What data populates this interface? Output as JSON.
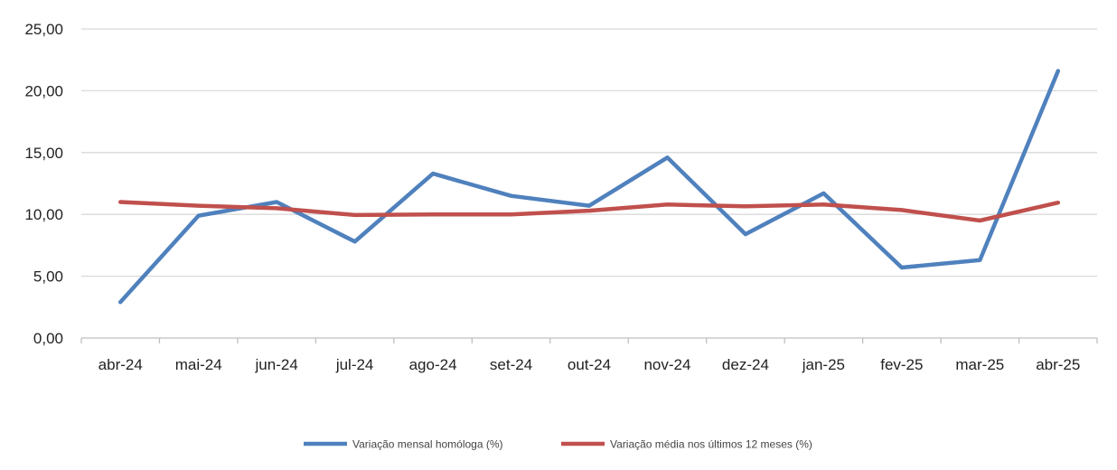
{
  "chart_data": {
    "type": "line",
    "categories": [
      "abr-24",
      "mai-24",
      "jun-24",
      "jul-24",
      "ago-24",
      "set-24",
      "out-24",
      "nov-24",
      "dez-24",
      "jan-25",
      "fev-25",
      "mar-25",
      "abr-25"
    ],
    "series": [
      {
        "name": "Variação mensal homóloga (%)",
        "color": "#4F81BD",
        "values": [
          2.9,
          9.9,
          11.0,
          7.8,
          13.3,
          11.5,
          10.7,
          14.6,
          8.4,
          11.7,
          5.7,
          6.3,
          21.6
        ]
      },
      {
        "name": "Variação média nos últimos 12 meses (%)",
        "color": "#C0504D",
        "values": [
          11.0,
          10.7,
          10.5,
          9.95,
          10.0,
          10.0,
          10.3,
          10.8,
          10.65,
          10.8,
          10.35,
          9.5,
          10.95
        ]
      }
    ],
    "y_ticks": [
      "0,00",
      "5,00",
      "10,00",
      "15,00",
      "20,00",
      "25,00"
    ],
    "ylim": [
      0,
      25
    ],
    "grid": true,
    "legend_position": "bottom"
  }
}
